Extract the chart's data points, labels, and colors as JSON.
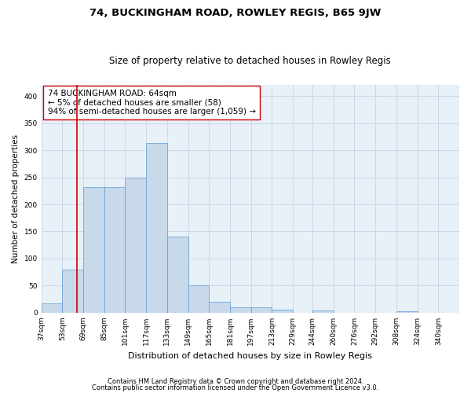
{
  "title": "74, BUCKINGHAM ROAD, ROWLEY REGIS, B65 9JW",
  "subtitle": "Size of property relative to detached houses in Rowley Regis",
  "xlabel": "Distribution of detached houses by size in Rowley Regis",
  "ylabel": "Number of detached properties",
  "footnote1": "Contains HM Land Registry data © Crown copyright and database right 2024.",
  "footnote2": "Contains public sector information licensed under the Open Government Licence v3.0.",
  "annotation_line1": "74 BUCKINGHAM ROAD: 64sqm",
  "annotation_line2": "← 5% of detached houses are smaller (58)",
  "annotation_line3": "94% of semi-detached houses are larger (1,059) →",
  "bar_color": "#c8d9ea",
  "bar_edge_color": "#5b9bd5",
  "vline_color": "#cc0000",
  "vline_x": 64,
  "bin_edges": [
    37,
    53,
    69,
    85,
    101,
    117,
    133,
    149,
    165,
    181,
    197,
    213,
    229,
    244,
    260,
    276,
    292,
    308,
    324,
    340,
    356
  ],
  "bar_heights": [
    17,
    80,
    232,
    232,
    250,
    313,
    141,
    51,
    20,
    10,
    10,
    5,
    0,
    4,
    0,
    0,
    0,
    3,
    0,
    0
  ],
  "xlim": [
    37,
    356
  ],
  "ylim": [
    0,
    420
  ],
  "yticks": [
    0,
    50,
    100,
    150,
    200,
    250,
    300,
    350,
    400
  ],
  "grid_color": "#ccd9e8",
  "bg_color": "#e8f0f8",
  "title_fontsize": 9.5,
  "subtitle_fontsize": 8.5,
  "xlabel_fontsize": 8,
  "ylabel_fontsize": 7.5,
  "tick_fontsize": 6.5,
  "annotation_fontsize": 7.5,
  "footnote_fontsize": 6
}
